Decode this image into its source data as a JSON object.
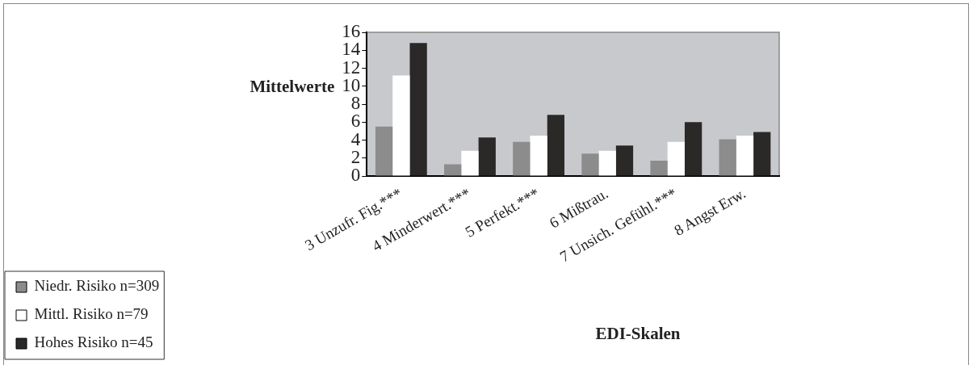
{
  "chart_data": {
    "type": "bar",
    "xlabel": "EDI-Skalen",
    "ylabel": "Mittelwerte",
    "categories": [
      "3 Unzufr. Fig.***",
      "4 Minderwert.***",
      "5 Perfekt.***",
      "6 Mißtrau.",
      "7 Unsich. Gefühl.***",
      "8 Angst Erw."
    ],
    "series": [
      {
        "name": "Niedr. Risiko n=309",
        "color": "#8c8c8c",
        "values": [
          5.5,
          1.3,
          3.8,
          2.5,
          1.7,
          4.1
        ]
      },
      {
        "name": "Mittl. Risiko n=79",
        "color": "#ffffff",
        "values": [
          11.2,
          2.8,
          4.5,
          2.8,
          3.8,
          4.5
        ]
      },
      {
        "name": "Hohes Risiko n=45",
        "color": "#2b2828",
        "values": [
          14.8,
          4.3,
          6.8,
          3.4,
          6.0,
          4.9
        ]
      }
    ],
    "ylim": [
      0,
      16
    ],
    "yticks": [
      0,
      2,
      4,
      6,
      8,
      10,
      12,
      14,
      16
    ],
    "grid": false,
    "legend": "bottom left"
  }
}
